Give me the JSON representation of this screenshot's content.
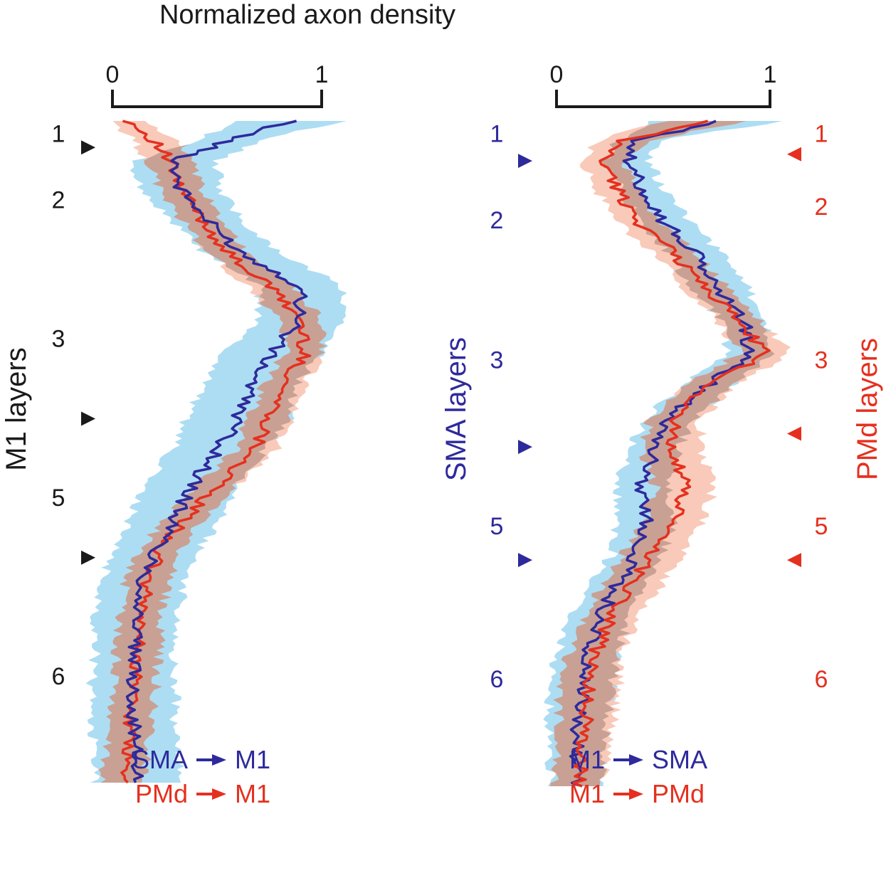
{
  "title": "Normalized axon density",
  "colors": {
    "blue": "#2e2a9c",
    "red": "#e5301f",
    "blue_band": "#a9dbf2",
    "red_band": "#f7b8a2",
    "overlap_band": "#c39b8e",
    "black": "#1a1a1a"
  },
  "chart_data": [
    {
      "type": "line",
      "panel": "left",
      "title": "Normalized axon density",
      "xlabel": "Normalized axon density",
      "ylabel": "M1 layers",
      "xlim": [
        0,
        1
      ],
      "x_ticks": [
        "0",
        "1"
      ],
      "depth_range": [
        0,
        1
      ],
      "layers": [
        {
          "label": "1",
          "depth": 0.01
        },
        {
          "label": "2",
          "depth": 0.11
        },
        {
          "label": "3",
          "depth": 0.32
        },
        {
          "label": "5",
          "depth": 0.56
        },
        {
          "label": "6",
          "depth": 0.83
        }
      ],
      "layer_boundaries": [
        0.04,
        0.45,
        0.66
      ],
      "series": [
        {
          "name": "SMA → M1",
          "color": "#2e2a9c",
          "depth": [
            0,
            0.03,
            0.06,
            0.1,
            0.15,
            0.2,
            0.25,
            0.3,
            0.35,
            0.4,
            0.45,
            0.5,
            0.55,
            0.6,
            0.65,
            0.7,
            0.75,
            0.8,
            0.85,
            0.9,
            0.95,
            1.0
          ],
          "mean": [
            0.85,
            0.55,
            0.3,
            0.32,
            0.45,
            0.62,
            0.9,
            0.9,
            0.76,
            0.66,
            0.6,
            0.5,
            0.38,
            0.3,
            0.21,
            0.14,
            0.12,
            0.1,
            0.1,
            0.1,
            0.11,
            0.12
          ],
          "sem": [
            0.25,
            0.15,
            0.2,
            0.19,
            0.17,
            0.18,
            0.2,
            0.2,
            0.23,
            0.22,
            0.25,
            0.22,
            0.23,
            0.22,
            0.2,
            0.2,
            0.2,
            0.18,
            0.2,
            0.2,
            0.2,
            0.2
          ]
        },
        {
          "name": "PMd → M1",
          "color": "#e5301f",
          "depth": [
            0,
            0.03,
            0.06,
            0.1,
            0.15,
            0.2,
            0.25,
            0.3,
            0.35,
            0.4,
            0.45,
            0.5,
            0.55,
            0.6,
            0.65,
            0.7,
            0.75,
            0.8,
            0.85,
            0.9,
            0.95,
            1.0
          ],
          "mean": [
            0.08,
            0.2,
            0.27,
            0.32,
            0.43,
            0.55,
            0.75,
            0.9,
            0.92,
            0.82,
            0.75,
            0.68,
            0.5,
            0.35,
            0.22,
            0.16,
            0.14,
            0.12,
            0.11,
            0.09,
            0.07,
            0.05
          ],
          "sem": [
            0.08,
            0.1,
            0.1,
            0.1,
            0.1,
            0.09,
            0.11,
            0.1,
            0.09,
            0.1,
            0.1,
            0.1,
            0.1,
            0.09,
            0.1,
            0.1,
            0.1,
            0.1,
            0.1,
            0.1,
            0.1,
            0.1
          ]
        }
      ],
      "legend": [
        {
          "from": "SMA",
          "to": "M1",
          "color": "#2e2a9c"
        },
        {
          "from": "PMd",
          "to": "M1",
          "color": "#e5301f"
        }
      ]
    },
    {
      "type": "line",
      "panel": "right",
      "xlim": [
        0,
        1
      ],
      "x_ticks": [
        "0",
        "1"
      ],
      "depth_range": [
        0,
        1
      ],
      "left_axis_label": "SMA layers",
      "right_axis_label": "PMd layers",
      "sma_layers": [
        {
          "label": "1",
          "depth": 0.01
        },
        {
          "label": "2",
          "depth": 0.14
        },
        {
          "label": "3",
          "depth": 0.35
        },
        {
          "label": "5",
          "depth": 0.6
        },
        {
          "label": "6",
          "depth": 0.83
        }
      ],
      "sma_boundaries": [
        0.06,
        0.49,
        0.66
      ],
      "pmd_layers": [
        {
          "label": "1",
          "depth": 0.01
        },
        {
          "label": "2",
          "depth": 0.12
        },
        {
          "label": "3",
          "depth": 0.35
        },
        {
          "label": "5",
          "depth": 0.6
        },
        {
          "label": "6",
          "depth": 0.83
        }
      ],
      "pmd_boundaries": [
        0.05,
        0.47,
        0.66
      ],
      "series": [
        {
          "name": "M1 → SMA",
          "color": "#2e2a9c",
          "depth": [
            0,
            0.03,
            0.06,
            0.1,
            0.15,
            0.2,
            0.25,
            0.3,
            0.35,
            0.4,
            0.45,
            0.5,
            0.55,
            0.6,
            0.65,
            0.7,
            0.75,
            0.8,
            0.85,
            0.9,
            0.95,
            1.0
          ],
          "mean": [
            0.75,
            0.38,
            0.33,
            0.4,
            0.5,
            0.65,
            0.75,
            0.88,
            0.9,
            0.7,
            0.52,
            0.45,
            0.4,
            0.42,
            0.38,
            0.28,
            0.2,
            0.14,
            0.12,
            0.1,
            0.1,
            0.1
          ],
          "sem": [
            0.3,
            0.1,
            0.1,
            0.1,
            0.12,
            0.12,
            0.14,
            0.1,
            0.1,
            0.12,
            0.11,
            0.12,
            0.12,
            0.13,
            0.12,
            0.12,
            0.14,
            0.14,
            0.14,
            0.14,
            0.13,
            0.13
          ]
        },
        {
          "name": "M1 → PMd",
          "color": "#e5301f",
          "depth": [
            0,
            0.03,
            0.06,
            0.1,
            0.15,
            0.2,
            0.25,
            0.3,
            0.35,
            0.4,
            0.45,
            0.5,
            0.55,
            0.6,
            0.65,
            0.7,
            0.75,
            0.8,
            0.85,
            0.9,
            0.95,
            1.0
          ],
          "mean": [
            0.7,
            0.3,
            0.22,
            0.28,
            0.38,
            0.55,
            0.7,
            0.85,
            0.98,
            0.7,
            0.55,
            0.55,
            0.6,
            0.55,
            0.45,
            0.35,
            0.25,
            0.18,
            0.15,
            0.14,
            0.12,
            0.1
          ],
          "sem": [
            0.2,
            0.11,
            0.1,
            0.1,
            0.1,
            0.1,
            0.1,
            0.1,
            0.12,
            0.12,
            0.12,
            0.14,
            0.14,
            0.14,
            0.14,
            0.14,
            0.13,
            0.12,
            0.14,
            0.13,
            0.12,
            0.12
          ]
        }
      ],
      "legend": [
        {
          "from": "M1",
          "to": "SMA",
          "color": "#2e2a9c"
        },
        {
          "from": "M1",
          "to": "PMd",
          "color": "#e5301f"
        }
      ]
    }
  ]
}
